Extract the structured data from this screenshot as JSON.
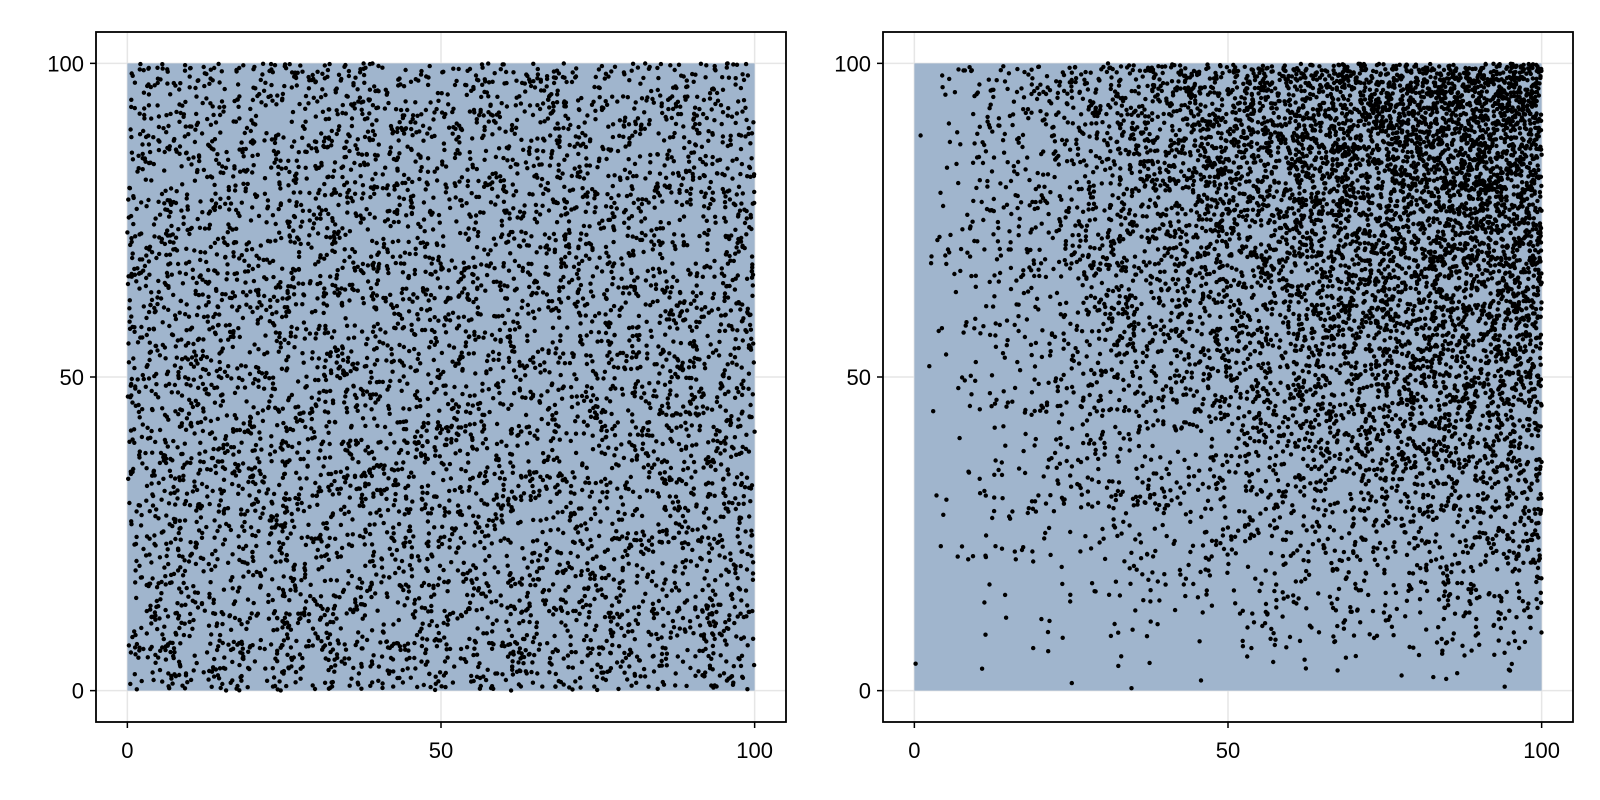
{
  "chart_data": [
    {
      "type": "scatter",
      "title": "",
      "xlabel": "",
      "ylabel": "",
      "xlim": [
        -5,
        105
      ],
      "ylim": [
        -5,
        105
      ],
      "grid": true,
      "x_ticks": [
        0,
        50,
        100
      ],
      "y_ticks": [
        0,
        50,
        100
      ],
      "x_tick_labels": [
        "0",
        "50",
        "100"
      ],
      "y_tick_labels": [
        "0",
        "50",
        "100"
      ],
      "region": {
        "x": [
          0,
          100
        ],
        "y": [
          0,
          100
        ]
      },
      "region_color": "#a0b5cd",
      "marker_color": "#000000",
      "distribution": "uniform",
      "point_count": 6000,
      "series": [
        {
          "values_sample": [
            [
              0.4,
              80.1
            ],
            [
              1.2,
              66.3
            ],
            [
              2.0,
              29.5
            ],
            [
              3.8,
              91.2
            ],
            [
              5.5,
              72.0
            ],
            [
              7.9,
              12.4
            ],
            [
              10.2,
              45.8
            ],
            [
              13.6,
              97.3
            ],
            [
              18.0,
              6.1
            ],
            [
              22.7,
              58.9
            ],
            [
              27.3,
              83.5
            ],
            [
              31.8,
              21.7
            ],
            [
              36.2,
              67.4
            ],
            [
              41.5,
              3.2
            ],
            [
              45.9,
              93.8
            ],
            [
              50.4,
              48.6
            ],
            [
              55.1,
              15.2
            ],
            [
              59.7,
              74.9
            ],
            [
              64.3,
              31.0
            ],
            [
              68.8,
              98.4
            ],
            [
              73.2,
              8.7
            ],
            [
              77.6,
              61.3
            ],
            [
              82.1,
              38.5
            ],
            [
              86.5,
              88.2
            ],
            [
              91.0,
              23.9
            ],
            [
              94.4,
              55.6
            ],
            [
              97.3,
              11.8
            ],
            [
              99.6,
              69.2
            ]
          ]
        }
      ]
    },
    {
      "type": "scatter",
      "title": "",
      "xlabel": "",
      "ylabel": "",
      "xlim": [
        -5,
        105
      ],
      "ylim": [
        -5,
        105
      ],
      "grid": true,
      "x_ticks": [
        0,
        50,
        100
      ],
      "y_ticks": [
        0,
        50,
        100
      ],
      "x_tick_labels": [
        "0",
        "50",
        "100"
      ],
      "y_tick_labels": [
        "0",
        "50",
        "100"
      ],
      "region": {
        "x": [
          0,
          100
        ],
        "y": [
          0,
          100
        ]
      },
      "region_color": "#a0b5cd",
      "marker_color": "#000000",
      "distribution": "density increasing toward top-right (x·y weighted)",
      "point_count": 8000,
      "series": [
        {
          "values_sample": [
            [
              0.2,
              4.3
            ],
            [
              1.0,
              88.5
            ],
            [
              4.5,
              96.2
            ],
            [
              10.8,
              3.5
            ],
            [
              16.7,
              35.4
            ],
            [
              25.1,
              1.2
            ],
            [
              30.6,
              68.8
            ],
            [
              38.4,
              94.7
            ],
            [
              44.0,
              22.1
            ],
            [
              51.3,
              81.6
            ],
            [
              57.9,
              47.3
            ],
            [
              62.5,
              99.1
            ],
            [
              67.2,
              12.8
            ],
            [
              71.8,
              73.4
            ],
            [
              76.3,
              33.7
            ],
            [
              80.9,
              91.5
            ],
            [
              84.1,
              58.2
            ],
            [
              87.7,
              5.6
            ],
            [
              90.3,
              79.9
            ],
            [
              93.6,
              42.4
            ],
            [
              96.2,
              97.6
            ],
            [
              98.5,
              24.8
            ],
            [
              99.4,
              63.1
            ],
            [
              99.8,
              86.7
            ]
          ]
        }
      ]
    }
  ]
}
